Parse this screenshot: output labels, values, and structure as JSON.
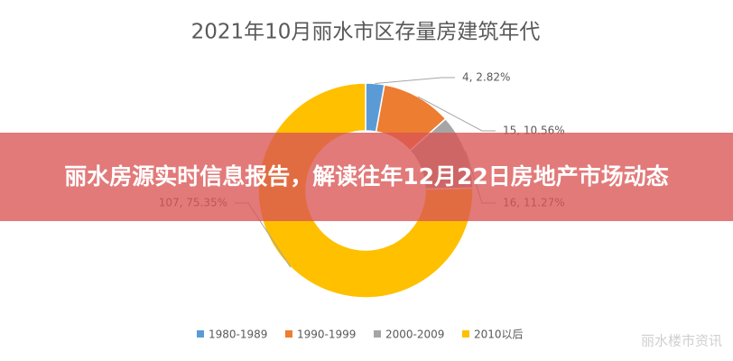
{
  "chart_data": {
    "type": "pie",
    "title": "2021年10月丽水市区存量房建筑年代",
    "categories": [
      "1980-1989",
      "1990-1999",
      "2000-2009",
      "2010以后"
    ],
    "values": [
      4,
      15,
      16,
      107
    ],
    "value_labels": [
      "4, 2.82%",
      "15, 10.56%",
      "16, 11.27%",
      "107, 75.35%"
    ],
    "colors": [
      "#5b9bd5",
      "#ed7d31",
      "#a5a5a5",
      "#ffc000"
    ],
    "legend": "bottom"
  },
  "overlay_title": "丽水房源实时信息报告，解读往年12月22日房地产市场动态",
  "watermark": "丽水楼市资讯"
}
